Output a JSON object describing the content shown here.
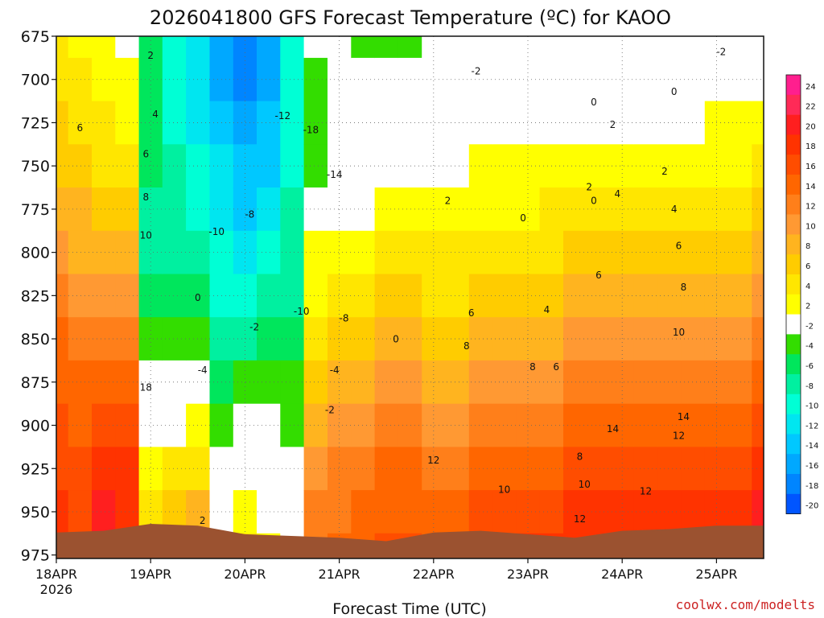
{
  "chart_data": {
    "type": "heatmap",
    "title": "2026041800 GFS Forecast Temperature (ºC) for KAOO",
    "xlabel": "Forecast Time (UTC)",
    "ylabel": "",
    "x_tick_labels": [
      "18APR",
      "19APR",
      "20APR",
      "21APR",
      "22APR",
      "23APR",
      "24APR",
      "25APR"
    ],
    "x_tick_sublabel": "2026",
    "x_range_days": [
      0,
      7.5
    ],
    "y_tick_labels": [
      "675",
      "700",
      "725",
      "750",
      "775",
      "800",
      "825",
      "850",
      "875",
      "900",
      "925",
      "950",
      "975"
    ],
    "y_range_hpa": [
      675,
      977
    ],
    "y_reversed": true,
    "colorbar": {
      "labels": [
        "24",
        "22",
        "20",
        "18",
        "16",
        "14",
        "12",
        "10",
        "8",
        "6",
        "4",
        "2",
        "-2",
        "-4",
        "-6",
        "-8",
        "-10",
        "-12",
        "-14",
        "-16",
        "-18",
        "-20"
      ],
      "colors": [
        "#ff1f8e",
        "#ff2a57",
        "#ff1f1f",
        "#ff3300",
        "#ff4d00",
        "#ff6600",
        "#ff7f1a",
        "#ff9933",
        "#ffb41f",
        "#ffcc00",
        "#ffe600",
        "#ffff00",
        "#ffffff",
        "#33dd00",
        "#00e65c",
        "#00f0a0",
        "#00ffd5",
        "#00e6f0",
        "#00c8ff",
        "#00a8ff",
        "#0085ff",
        "#0055ff"
      ],
      "levels": [
        24,
        22,
        20,
        18,
        16,
        14,
        12,
        10,
        8,
        6,
        4,
        2,
        -2,
        -4,
        -6,
        -8,
        -10,
        -12,
        -14,
        -16,
        -18,
        -20
      ]
    },
    "temperature_grid": {
      "times_days": [
        0,
        0.25,
        0.5,
        0.75,
        1,
        1.25,
        1.5,
        1.75,
        2,
        2.25,
        2.5,
        2.75,
        3,
        3.25,
        3.5,
        3.75,
        4,
        4.25,
        4.5,
        4.75,
        5,
        5.25,
        5.5,
        5.75,
        6,
        6.25,
        6.5,
        6.75,
        7,
        7.25,
        7.5
      ],
      "levels_hpa": [
        675,
        700,
        725,
        750,
        775,
        800,
        825,
        850,
        875,
        900,
        925,
        950,
        975
      ],
      "profiles": [
        [
          4,
          5,
          6,
          7,
          8,
          10,
          12,
          14,
          15,
          16,
          17,
          18,
          19
        ],
        [
          3,
          4,
          5,
          6,
          8,
          9,
          11,
          13,
          14,
          15,
          16,
          17,
          18
        ],
        [
          2,
          3,
          4,
          5,
          7,
          9,
          11,
          13,
          15,
          17,
          19,
          21,
          22
        ],
        [
          1,
          2,
          3,
          4,
          6,
          8,
          10,
          12,
          14,
          16,
          18,
          19,
          20
        ],
        [
          -6,
          -6,
          -7,
          -7,
          -8,
          -8,
          -6,
          -4,
          -2,
          1,
          3,
          4,
          4
        ],
        [
          -10,
          -10,
          -10,
          -9,
          -9,
          -8,
          -6,
          -4,
          -2,
          1,
          4,
          7,
          8
        ],
        [
          -13,
          -13,
          -12,
          -11,
          -10,
          -9,
          -7,
          -4,
          -1,
          2,
          5,
          8,
          10
        ],
        [
          -16,
          -16,
          -15,
          -13,
          -12,
          -11,
          -10,
          -8,
          -6,
          -4,
          -2,
          -1,
          0
        ],
        [
          -18,
          -18,
          -17,
          -15,
          -14,
          -12,
          -10,
          -8,
          -5,
          -2,
          1,
          3,
          5
        ],
        [
          -16,
          -16,
          -15,
          -14,
          -12,
          -11,
          -9,
          -7,
          -5,
          -3,
          -1,
          1,
          2
        ],
        [
          -10,
          -10,
          -10,
          -10,
          -9,
          -9,
          -8,
          -7,
          -5,
          -4,
          -3,
          -1,
          0
        ],
        [
          -3,
          -4,
          -5,
          -5,
          1,
          2,
          3,
          5,
          7,
          9,
          11,
          12,
          13
        ],
        [
          -3,
          -3,
          -3,
          -2,
          1,
          2,
          4,
          6,
          8,
          10,
          12,
          13,
          14
        ],
        [
          -4,
          -3,
          -2,
          -1,
          1,
          3,
          5,
          7,
          9,
          11,
          13,
          14,
          15
        ],
        [
          -4,
          -2,
          -1,
          0,
          2,
          4,
          6,
          8,
          10,
          12,
          14,
          15,
          16
        ],
        [
          -4,
          -1,
          0,
          1,
          3,
          4,
          6,
          8,
          10,
          12,
          14,
          15,
          16
        ],
        [
          -3,
          -1,
          0,
          1,
          3,
          4,
          5,
          7,
          9,
          11,
          13,
          14,
          15
        ],
        [
          -2,
          -1,
          0,
          1,
          2,
          4,
          5,
          7,
          9,
          11,
          13,
          15,
          16
        ],
        [
          -2,
          -1,
          0,
          2,
          3,
          4,
          6,
          8,
          10,
          12,
          14,
          16,
          17
        ],
        [
          -2,
          -1,
          0,
          2,
          3,
          5,
          6,
          8,
          10,
          12,
          14,
          16,
          17
        ],
        [
          -2,
          -1,
          1,
          2,
          3,
          5,
          7,
          9,
          11,
          13,
          15,
          17,
          18
        ],
        [
          -2,
          0,
          1,
          2,
          4,
          5,
          7,
          9,
          11,
          13,
          15,
          17,
          18
        ],
        [
          -2,
          0,
          1,
          2,
          4,
          6,
          8,
          10,
          12,
          14,
          16,
          18,
          19
        ],
        [
          -2,
          0,
          1,
          2,
          4,
          6,
          8,
          10,
          12,
          14,
          16,
          18,
          19
        ],
        [
          -2,
          0,
          1,
          2,
          4,
          6,
          8,
          10,
          12,
          14,
          16,
          18,
          20
        ],
        [
          -2,
          0,
          1,
          3,
          5,
          7,
          9,
          11,
          13,
          15,
          17,
          19,
          20
        ],
        [
          -2,
          0,
          1,
          3,
          5,
          7,
          9,
          11,
          13,
          15,
          17,
          19,
          21
        ],
        [
          -2,
          0,
          1,
          3,
          5,
          7,
          9,
          11,
          13,
          15,
          17,
          19,
          21
        ],
        [
          -2,
          0,
          2,
          3,
          5,
          7,
          9,
          11,
          13,
          15,
          17,
          19,
          21
        ],
        [
          -2,
          0,
          2,
          3,
          5,
          7,
          9,
          11,
          13,
          15,
          17,
          19,
          21
        ],
        [
          -2,
          0,
          2,
          4,
          6,
          8,
          10,
          12,
          14,
          16,
          18,
          20,
          22
        ]
      ]
    },
    "contour_labels": [
      {
        "text": "2",
        "t": 1.0,
        "p": 688
      },
      {
        "text": "4",
        "t": 1.05,
        "p": 722
      },
      {
        "text": "6",
        "t": 0.25,
        "p": 730
      },
      {
        "text": "6",
        "t": 0.95,
        "p": 745
      },
      {
        "text": "8",
        "t": 0.95,
        "p": 770
      },
      {
        "text": "10",
        "t": 0.95,
        "p": 792
      },
      {
        "text": "18",
        "t": 0.95,
        "p": 880
      },
      {
        "text": "0",
        "t": 1.5,
        "p": 828
      },
      {
        "text": "-4",
        "t": 1.55,
        "p": 870
      },
      {
        "text": "-10",
        "t": 1.7,
        "p": 790
      },
      {
        "text": "-8",
        "t": 2.05,
        "p": 780
      },
      {
        "text": "-2",
        "t": 2.1,
        "p": 845
      },
      {
        "text": "2",
        "t": 1.55,
        "p": 957
      },
      {
        "text": "-12",
        "t": 2.4,
        "p": 723
      },
      {
        "text": "-18",
        "t": 2.7,
        "p": 731
      },
      {
        "text": "-14",
        "t": 2.95,
        "p": 757
      },
      {
        "text": "-10",
        "t": 2.6,
        "p": 836
      },
      {
        "text": "-8",
        "t": 3.05,
        "p": 840
      },
      {
        "text": "-4",
        "t": 2.95,
        "p": 870
      },
      {
        "text": "-2",
        "t": 2.9,
        "p": 893
      },
      {
        "text": "0",
        "t": 3.6,
        "p": 852
      },
      {
        "text": "-2",
        "t": 4.45,
        "p": 697
      },
      {
        "text": "2",
        "t": 4.15,
        "p": 772
      },
      {
        "text": "0",
        "t": 4.95,
        "p": 782
      },
      {
        "text": "0",
        "t": 5.7,
        "p": 715
      },
      {
        "text": "0",
        "t": 6.55,
        "p": 709
      },
      {
        "text": "2",
        "t": 5.9,
        "p": 728
      },
      {
        "text": "2",
        "t": 5.65,
        "p": 764
      },
      {
        "text": "0",
        "t": 5.7,
        "p": 772
      },
      {
        "text": "4",
        "t": 5.95,
        "p": 768
      },
      {
        "text": "2",
        "t": 6.45,
        "p": 755
      },
      {
        "text": "-2",
        "t": 7.05,
        "p": 686
      },
      {
        "text": "4",
        "t": 6.55,
        "p": 777
      },
      {
        "text": "6",
        "t": 6.6,
        "p": 798
      },
      {
        "text": "8",
        "t": 6.65,
        "p": 822
      },
      {
        "text": "10",
        "t": 6.6,
        "p": 848
      },
      {
        "text": "14",
        "t": 6.65,
        "p": 897
      },
      {
        "text": "12",
        "t": 6.6,
        "p": 908
      },
      {
        "text": "6",
        "t": 5.3,
        "p": 868
      },
      {
        "text": "4",
        "t": 5.2,
        "p": 835
      },
      {
        "text": "6",
        "t": 4.4,
        "p": 837
      },
      {
        "text": "8",
        "t": 4.35,
        "p": 856
      },
      {
        "text": "8",
        "t": 5.05,
        "p": 868
      },
      {
        "text": "6",
        "t": 5.75,
        "p": 815
      },
      {
        "text": "14",
        "t": 5.9,
        "p": 904
      },
      {
        "text": "8",
        "t": 5.55,
        "p": 920
      },
      {
        "text": "10",
        "t": 5.6,
        "p": 936
      },
      {
        "text": "12",
        "t": 5.55,
        "p": 956
      },
      {
        "text": "12",
        "t": 6.25,
        "p": 940
      },
      {
        "text": "12",
        "t": 4.0,
        "p": 922
      },
      {
        "text": "10",
        "t": 4.75,
        "p": 939
      }
    ],
    "terrain_color": "#9b5230",
    "credit": "coolwx.com/modelts"
  }
}
